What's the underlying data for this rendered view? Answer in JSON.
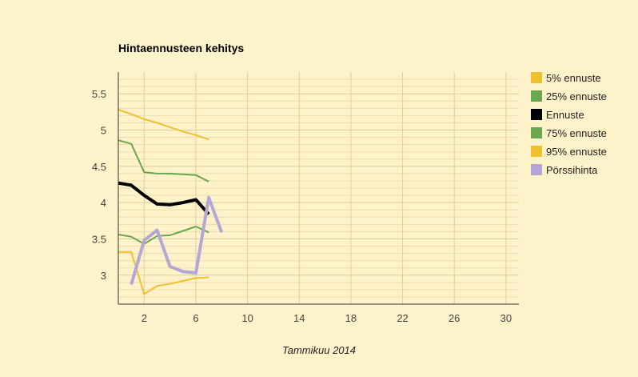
{
  "chart_data": {
    "type": "line",
    "title": "Hintaennusteen kehitys",
    "xlabel": "Tammikuu 2014",
    "ylabel": "",
    "xlim": [
      0,
      31
    ],
    "ylim": [
      2.6,
      5.8
    ],
    "x_ticks": [
      2,
      6,
      10,
      14,
      18,
      22,
      26,
      30
    ],
    "y_ticks": [
      3,
      3.5,
      4,
      4.5,
      5,
      5.5
    ],
    "grid": true,
    "legend_position": "right",
    "series": [
      {
        "name": "5% ennuste",
        "color": "#f0c030",
        "width": 2,
        "points": [
          [
            0,
            3.32
          ],
          [
            1,
            3.32
          ],
          [
            2,
            2.74
          ],
          [
            3,
            2.85
          ],
          [
            4,
            2.88
          ],
          [
            5,
            2.92
          ],
          [
            6,
            2.96
          ],
          [
            7,
            2.97
          ]
        ]
      },
      {
        "name": "25% ennuste",
        "color": "#6aa84f",
        "width": 2,
        "points": [
          [
            0,
            3.56
          ],
          [
            1,
            3.53
          ],
          [
            2,
            3.43
          ],
          [
            3,
            3.54
          ],
          [
            4,
            3.55
          ],
          [
            5,
            3.61
          ],
          [
            6,
            3.67
          ],
          [
            7,
            3.59
          ]
        ]
      },
      {
        "name": "Ennuste",
        "color": "#000000",
        "width": 4,
        "points": [
          [
            0,
            4.27
          ],
          [
            1,
            4.24
          ],
          [
            2,
            4.1
          ],
          [
            3,
            3.98
          ],
          [
            4,
            3.97
          ],
          [
            5,
            4.0
          ],
          [
            6,
            4.04
          ],
          [
            7,
            3.84
          ]
        ]
      },
      {
        "name": "75% ennuste",
        "color": "#6aa84f",
        "width": 2,
        "points": [
          [
            0,
            4.86
          ],
          [
            1,
            4.81
          ],
          [
            2,
            4.42
          ],
          [
            3,
            4.4
          ],
          [
            4,
            4.4
          ],
          [
            5,
            4.39
          ],
          [
            6,
            4.38
          ],
          [
            7,
            4.29
          ]
        ]
      },
      {
        "name": "95% ennuste",
        "color": "#f0c030",
        "width": 2,
        "points": [
          [
            0,
            5.28
          ],
          [
            1,
            5.22
          ],
          [
            2,
            5.15
          ],
          [
            3,
            5.1
          ],
          [
            4,
            5.04
          ],
          [
            5,
            4.98
          ],
          [
            6,
            4.93
          ],
          [
            7,
            4.87
          ]
        ]
      },
      {
        "name": "Pörssihinta",
        "color": "#b4a7d6",
        "width": 4,
        "points": [
          [
            1,
            2.87
          ],
          [
            2,
            3.48
          ],
          [
            3,
            3.62
          ],
          [
            4,
            3.12
          ],
          [
            5,
            3.05
          ],
          [
            6,
            3.03
          ],
          [
            7,
            4.07
          ],
          [
            8,
            3.59
          ]
        ]
      }
    ]
  }
}
